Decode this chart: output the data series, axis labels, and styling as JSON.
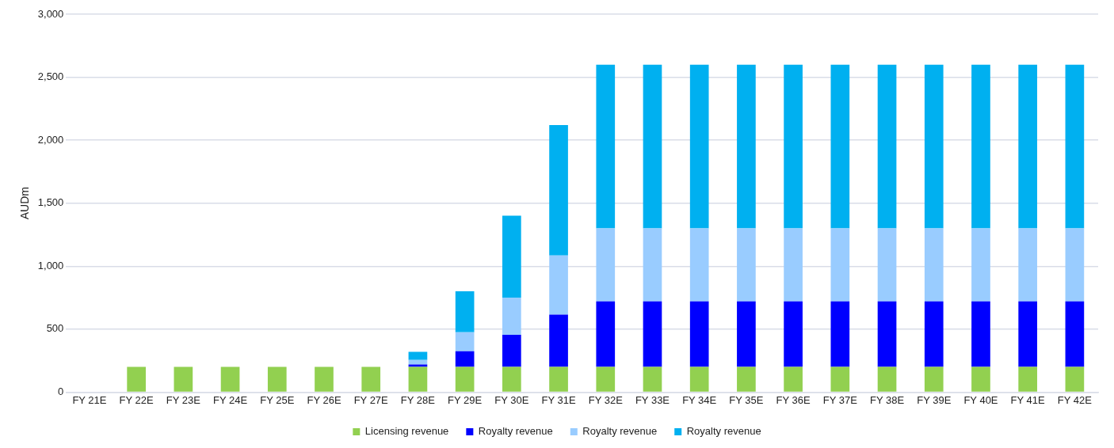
{
  "chart_data": {
    "type": "bar",
    "stacked": true,
    "ylabel": "AUDm",
    "categories": [
      "FY 21E",
      "FY 22E",
      "FY 23E",
      "FY 24E",
      "FY 25E",
      "FY 26E",
      "FY 27E",
      "FY 28E",
      "FY 29E",
      "FY 30E",
      "FY 31E",
      "FY 32E",
      "FY 33E",
      "FY 34E",
      "FY 35E",
      "FY 36E",
      "FY 37E",
      "FY 38E",
      "FY 39E",
      "FY 40E",
      "FY 41E",
      "FY 42E"
    ],
    "series": [
      {
        "name": "Licensing revenue",
        "color": "#92d050",
        "values": [
          0,
          200,
          200,
          200,
          200,
          200,
          200,
          200,
          200,
          200,
          200,
          200,
          200,
          200,
          200,
          200,
          200,
          200,
          200,
          200,
          200,
          200
        ]
      },
      {
        "name": "Royalty revenue",
        "color": "#0000ff",
        "values": [
          0,
          0,
          0,
          0,
          0,
          0,
          0,
          20,
          125,
          255,
          415,
          520,
          520,
          520,
          520,
          520,
          520,
          520,
          520,
          520,
          520,
          520
        ]
      },
      {
        "name": "Royalty revenue",
        "color": "#99ccff",
        "values": [
          0,
          0,
          0,
          0,
          0,
          0,
          0,
          35,
          150,
          295,
          470,
          580,
          580,
          580,
          580,
          580,
          580,
          580,
          580,
          580,
          580,
          580
        ]
      },
      {
        "name": "Royalty revenue",
        "color": "#00b0f0",
        "values": [
          0,
          0,
          0,
          0,
          0,
          0,
          0,
          65,
          325,
          650,
          1035,
          1300,
          1300,
          1300,
          1300,
          1300,
          1300,
          1300,
          1300,
          1300,
          1300,
          1300
        ]
      }
    ],
    "ylim": [
      0,
      3000
    ],
    "yticks": [
      {
        "value": 0,
        "label": "0"
      },
      {
        "value": 500,
        "label": "500"
      },
      {
        "value": 1000,
        "label": "1,000"
      },
      {
        "value": 1500,
        "label": "1,500"
      },
      {
        "value": 2000,
        "label": "2,000"
      },
      {
        "value": 2500,
        "label": "2,500"
      },
      {
        "value": 3000,
        "label": "3,000"
      }
    ],
    "grid": "y",
    "legend": "bottom"
  }
}
